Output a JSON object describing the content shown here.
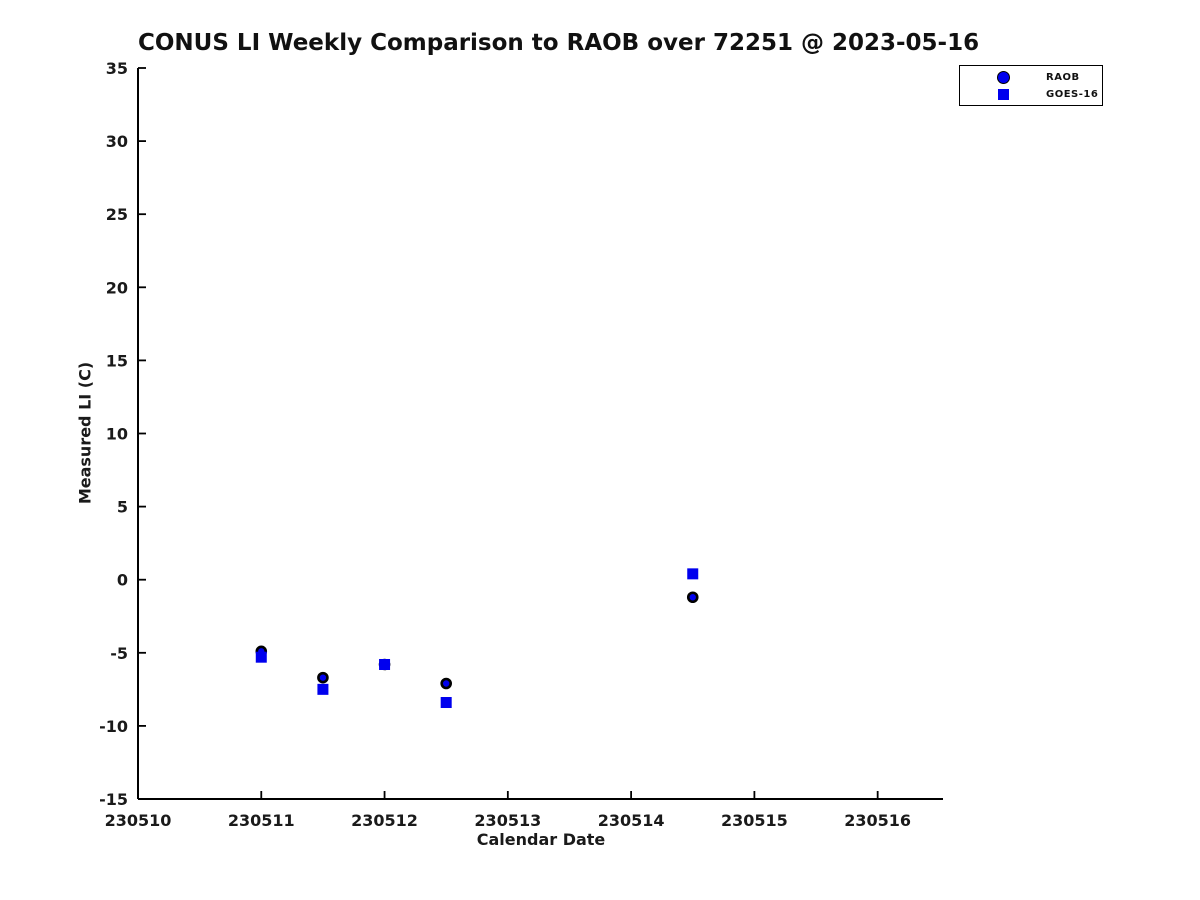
{
  "figure": {
    "background": "#ffffff",
    "axis_color": "#000000",
    "text_color": "#1a1a1a"
  },
  "chart_data": {
    "type": "scatter",
    "title": "CONUS LI Weekly Comparison to RAOB over 72251 @ 2023-05-16",
    "xlabel": "Calendar Date",
    "ylabel": "Measured LI (C)",
    "xlim": [
      230510,
      230516.53
    ],
    "ylim": [
      -15,
      35
    ],
    "xticks": [
      230510,
      230511,
      230512,
      230513,
      230514,
      230515,
      230516
    ],
    "yticks": [
      -15,
      -10,
      -5,
      0,
      5,
      10,
      15,
      20,
      25,
      30,
      35
    ],
    "grid": false,
    "legend": {
      "position": "top-right",
      "background": "#ffffff",
      "border_color": "#000000"
    },
    "series": [
      {
        "name": "RAOB",
        "marker": "circle",
        "face_color": "#0000ee",
        "edge_color": "#000000",
        "points": [
          [
            230511.0,
            -4.9
          ],
          [
            230511.5,
            -6.7
          ],
          [
            230512.0,
            -5.8
          ],
          [
            230512.5,
            -7.1
          ],
          [
            230514.5,
            -1.2
          ]
        ]
      },
      {
        "name": "GOES-16",
        "marker": "square",
        "face_color": "#0000ee",
        "edge_color": "#0000ee",
        "points": [
          [
            230511.0,
            -5.3
          ],
          [
            230511.5,
            -7.5
          ],
          [
            230512.0,
            -5.8
          ],
          [
            230512.5,
            -8.4
          ],
          [
            230514.5,
            0.4
          ]
        ]
      }
    ]
  }
}
